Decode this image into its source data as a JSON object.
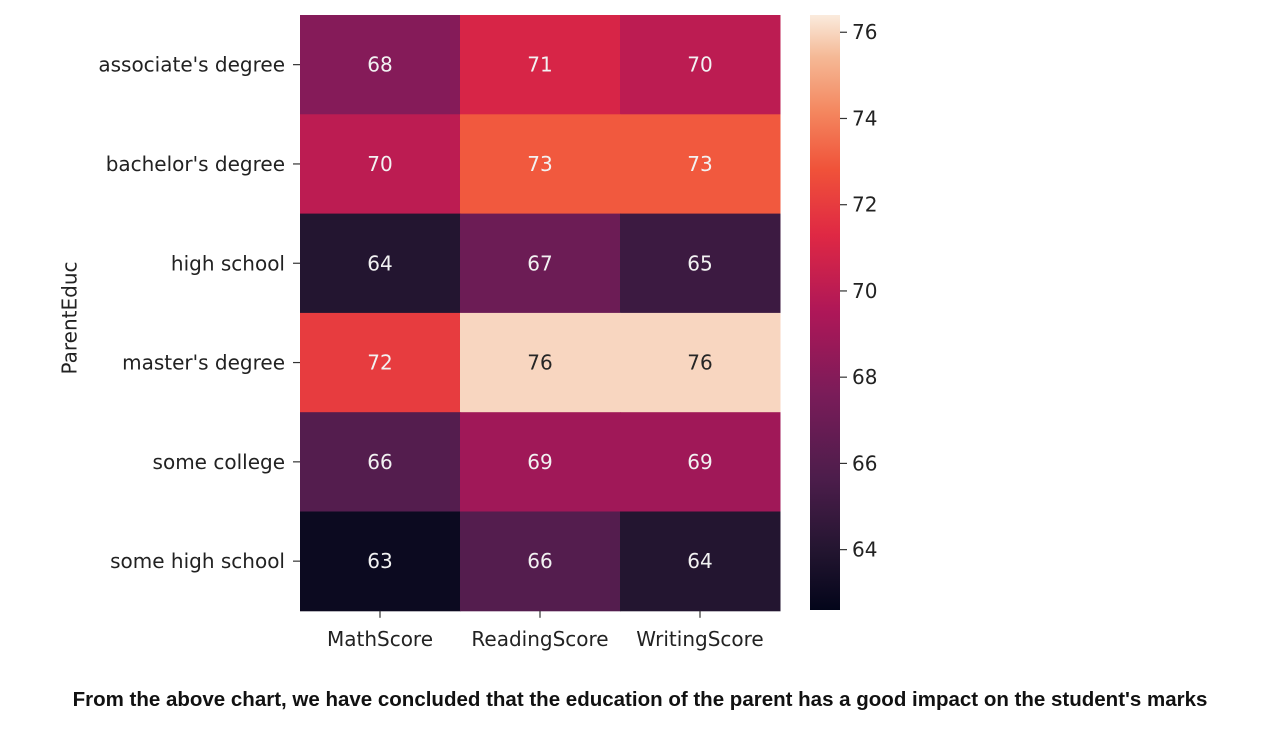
{
  "chart_data": {
    "type": "heatmap",
    "ylabel": "ParentEduc",
    "xlabel": "",
    "rows": [
      "associate's degree",
      "bachelor's degree",
      "high school",
      "master's degree",
      "some college",
      "some high school"
    ],
    "columns": [
      "MathScore",
      "ReadingScore",
      "WritingScore"
    ],
    "values": [
      [
        68,
        71,
        70
      ],
      [
        70,
        73,
        73
      ],
      [
        64,
        67,
        65
      ],
      [
        72,
        76,
        76
      ],
      [
        66,
        69,
        69
      ],
      [
        63,
        66,
        64
      ]
    ],
    "colorbar": {
      "min": 62.6,
      "max": 76.4,
      "ticks": [
        64,
        66,
        68,
        70,
        72,
        74,
        76
      ]
    },
    "colormap": "rocket",
    "annotations": true
  },
  "caption": "From the above chart, we have concluded that the education of the parent has a good impact on the student's marks"
}
